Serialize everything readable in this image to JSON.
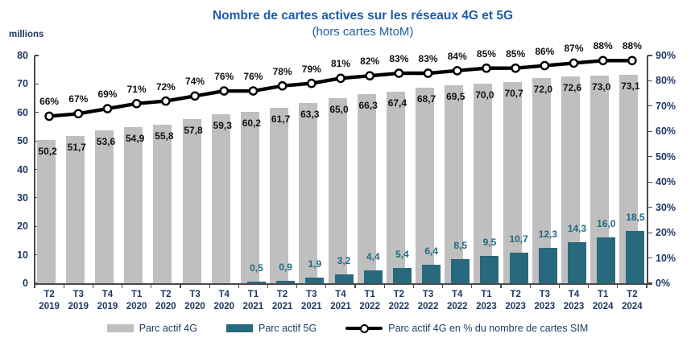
{
  "chart_data": {
    "type": "bar",
    "title": "Nombre de cartes actives sur les réseaux 4G et 5G",
    "subtitle": "(hors cartes MtoM)",
    "left_axis": {
      "label": "millions",
      "min": 0,
      "max": 80,
      "step": 10
    },
    "right_axis": {
      "min": 0,
      "max": 90,
      "step": 10,
      "suffix": "%"
    },
    "grid": false,
    "legend_position": "bottom",
    "categories": [
      "T2 2019",
      "T3 2019",
      "T4 2019",
      "T1 2020",
      "T2 2020",
      "T3 2020",
      "T4 2020",
      "T1 2021",
      "T2 2021",
      "T3 2021",
      "T4 2021",
      "T1 2022",
      "T2 2022",
      "T3 2022",
      "T4 2022",
      "T1 2023",
      "T2 2023",
      "T3 2023",
      "T4 2023",
      "T1 2024",
      "T2 2024"
    ],
    "series": [
      {
        "name": "Parc actif 4G",
        "type": "bar",
        "color": "#BFBFBF",
        "axis": "left",
        "values": [
          50.2,
          51.7,
          53.6,
          54.9,
          55.8,
          57.8,
          59.3,
          60.2,
          61.7,
          63.3,
          65.0,
          66.3,
          67.4,
          68.7,
          69.5,
          70.0,
          70.7,
          72.0,
          72.6,
          73.0,
          73.1
        ]
      },
      {
        "name": "Parc actif 5G",
        "type": "bar",
        "color": "#28697D",
        "axis": "left",
        "values": [
          null,
          null,
          null,
          null,
          null,
          null,
          null,
          0.5,
          0.9,
          1.9,
          3.2,
          4.4,
          5.4,
          6.4,
          8.5,
          9.5,
          10.7,
          12.3,
          14.3,
          16.0,
          18.5
        ]
      },
      {
        "name": "Parc actif 4G en % du nombre de cartes SIM",
        "type": "line",
        "color": "#000000",
        "marker": "circle-white",
        "axis": "right",
        "values": [
          66,
          67,
          69,
          71,
          72,
          74,
          76,
          76,
          78,
          79,
          81,
          82,
          83,
          83,
          84,
          85,
          85,
          86,
          87,
          88,
          88
        ]
      }
    ],
    "colors": {
      "title": "#1F5CA8",
      "axis_text": "#1F3864",
      "axis_line": "#4a4a4a",
      "label_4g": "#111111",
      "label_5g": "#1F6A85"
    }
  }
}
